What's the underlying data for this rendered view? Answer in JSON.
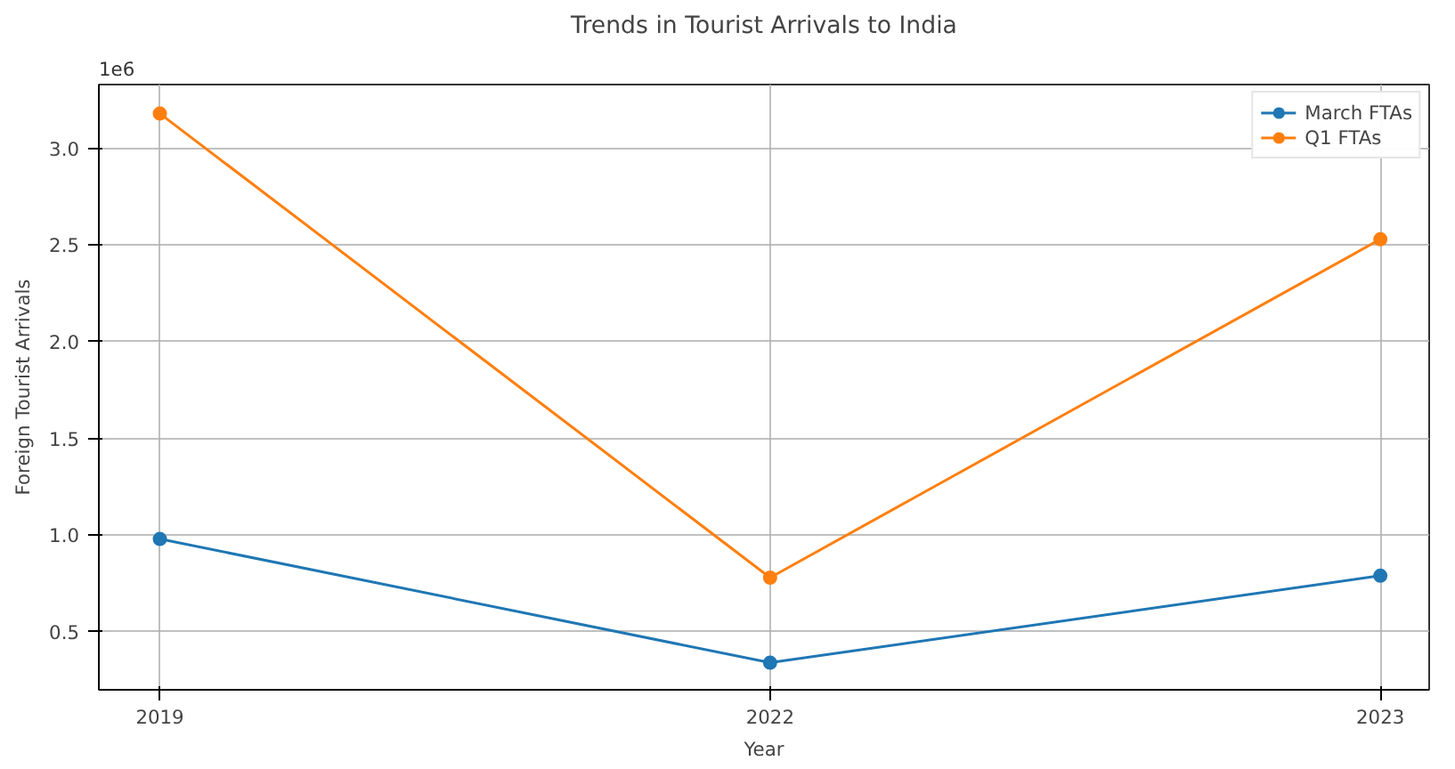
{
  "chart_data": {
    "type": "line",
    "title": "Trends in Tourist Arrivals to India",
    "xlabel": "Year",
    "ylabel": "Foreign Tourist Arrivals",
    "annotations": [
      "1e6"
    ],
    "categories": [
      "2019",
      "2022",
      "2023"
    ],
    "series": [
      {
        "name": "March FTAs",
        "color": "#1f77b4",
        "values": [
          0.98,
          0.34,
          0.79
        ]
      },
      {
        "name": "Q1 FTAs",
        "color": "#ff7f0e",
        "values": [
          3.18,
          0.78,
          2.53
        ]
      }
    ],
    "ylim": [
      0.2,
      3.33
    ],
    "yticks": [
      {
        "value": 0.5,
        "label": "0.5"
      },
      {
        "value": 1,
        "label": "1.0"
      },
      {
        "value": 1.5,
        "label": "1.5"
      },
      {
        "value": 2,
        "label": "2.0"
      },
      {
        "value": 2.5,
        "label": "2.5"
      },
      {
        "value": 3,
        "label": "3.0"
      }
    ],
    "grid": true,
    "legend": "top right",
    "marker": "circle",
    "line_style": "solid"
  }
}
